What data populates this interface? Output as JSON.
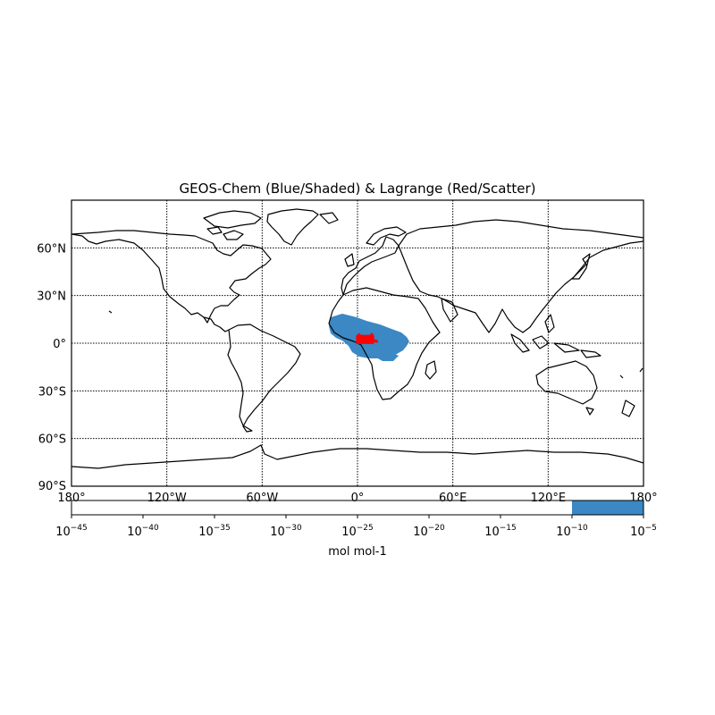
{
  "figure": {
    "title": "GEOS-Chem (Blue/Shaded) & Lagrange (Red/Scatter)",
    "colors": {
      "shaded": "#3b88c4",
      "scatter": "#ff0000",
      "coast": "#000000",
      "grid": "#000000"
    }
  },
  "map": {
    "projection": "cylindrical",
    "lon_range": [
      -180,
      180
    ],
    "lat_range": [
      -90,
      90
    ],
    "lat_labels": [
      "60°N",
      "30°N",
      "0°",
      "30°S",
      "60°S",
      "90°S"
    ],
    "lon_labels": [
      "180°",
      "120°W",
      "60°W",
      "0°",
      "60°E",
      "120°E",
      "180°"
    ],
    "gridlines": "dotted",
    "features": [
      {
        "type": "shaded-region",
        "name": "GEOS-Chem",
        "location": "west and central Africa, about 20°W–35°E, 10°S–17°N"
      },
      {
        "type": "scatter",
        "name": "Lagrange",
        "location": "Gulf of Guinea, about 0°–10°E, 0°–5°N"
      }
    ]
  },
  "colorbar": {
    "scale": "log",
    "exponents": [
      "−45",
      "−40",
      "−35",
      "−30",
      "−25",
      "−20",
      "−15",
      "−10",
      "−5"
    ],
    "base": "10",
    "filled_range": [
      "1e-10",
      "1e-5"
    ],
    "label": "mol mol-1"
  }
}
